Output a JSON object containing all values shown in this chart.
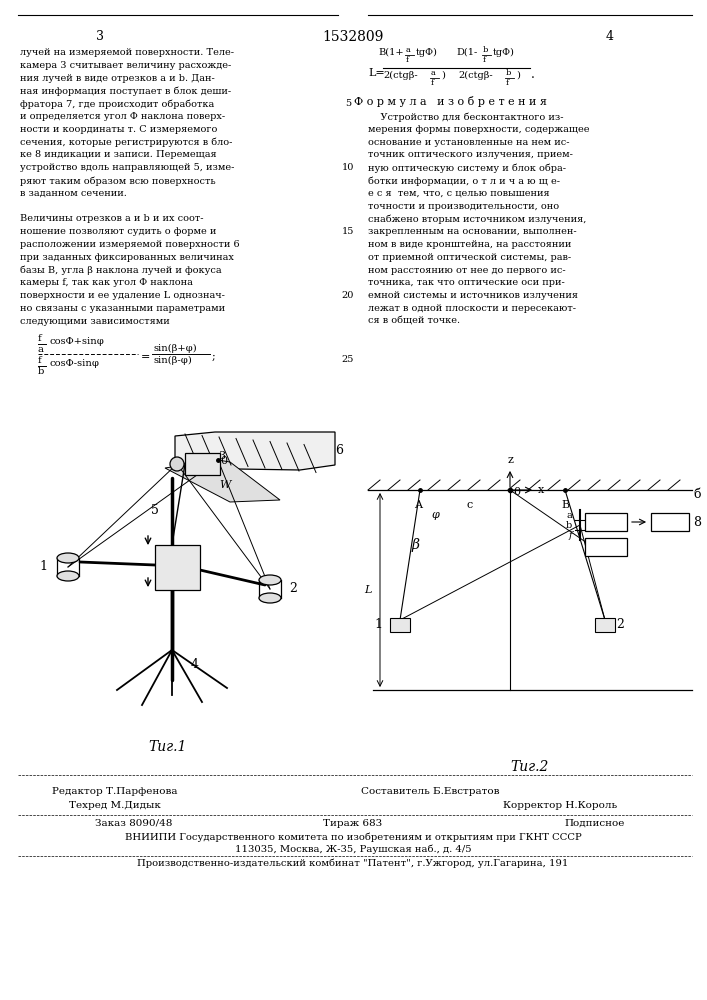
{
  "page_num_left": "3",
  "patent_num": "1532809",
  "page_num_right": "4",
  "col_left_lines": [
    "лучей на измеряемой поверхности. Теле-",
    "камера 3 считывает величину расхожде-",
    "ния лучей в виде отрезков а и b. Дан-",
    "ная информация поступает в блок деши-",
    "фратора 7, где происходит обработка",
    "и определяется угол Φ наклона поверх-",
    "ности и координаты т. С измеряемого",
    "сечения, которые регистрируются в бло-",
    "ке 8 индикации и записи. Перемещая",
    "устройство вдоль направляющей 5, изме-",
    "ряют таким образом всю поверхность",
    "в заданном сечении.",
    "",
    "Величины отрезков а и b и их соот-",
    "ношение позволяют судить о форме и",
    "расположении измеряемой поверхности 6",
    "при заданных фиксированных величинах",
    "базы B, угла β наклона лучей и фокуса",
    "камеры f, так как угол Φ наклона",
    "поверхности и ее удаление L однознач-",
    "но связаны с указанными параметрами",
    "следующими зависимостями"
  ],
  "line_numbers": [
    "5",
    "10",
    "15",
    "20",
    "25"
  ],
  "line_number_rows": [
    5,
    10,
    15,
    20,
    25
  ],
  "claim_lines": [
    "    Устройство для бесконтактного из-",
    "мерения формы поверхности, содержащее",
    "основание и установленные на нем ис-",
    "точник оптического излучения, прием-",
    "ную оптическую систему и блок обра-",
    "ботки информации, о т л и ч а ю щ е-",
    "е с я  тем, что, с целью повышения",
    "точности и производительности, оно",
    "снабжено вторым источником излучения,",
    "закрепленным на основании, выполнен-",
    "ном в виде кронштейна, на расстоянии",
    "от приемной оптической системы, рав-",
    "ном расстоянию от нее до первого ис-",
    "точника, так что оптические оси при-",
    "емной системы и источников излучения",
    "лежат в одной плоскости и пересекают-",
    "ся в общей точке."
  ],
  "formula_title": "Ф о р м у л а   и з о б р е т е н и я",
  "fig1_label": "Τиг.1",
  "fig2_label": "Τиг.2",
  "footer_editor": "Редактор Т.Парфенова",
  "footer_composer": "Составитель Б.Евстратов",
  "footer_techred": "Техред М.Дидык",
  "footer_corrector": "Корректор Н.Король",
  "footer_order": "Заказ 8090/48",
  "footer_tirazh": "Тираж 683",
  "footer_podpisnoe": "Подписное",
  "footer_vniipи": "ВНИИПИ Государственного комитета по изобретениям и открытиям при ГКНТ СССР",
  "footer_address": "113035, Москва, Ж-35, Раушская наб., д. 4/5",
  "footer_factory": "Производственно-издательский комбинат \"Патент\", г.Ужгород, ул.Гагарина, 191",
  "bg_color": "#ffffff",
  "text_color": "#000000"
}
